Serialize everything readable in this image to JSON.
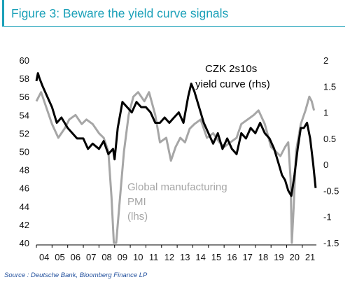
{
  "figure": {
    "title": "Figure 3: Beware the yield curve signals",
    "source": "Source : Deutsche Bank, Bloomberg Finance LP"
  },
  "chart_data": {
    "type": "line",
    "x_axis": {
      "tick_labels": [
        "04",
        "05",
        "06",
        "07",
        "08",
        "09",
        "10",
        "11",
        "12",
        "13",
        "14",
        "15",
        "16",
        "17",
        "18",
        "19",
        "20",
        "21"
      ],
      "range": [
        2004.0,
        2021.9
      ]
    },
    "y_left": {
      "range": [
        40,
        60
      ],
      "ticks": [
        40,
        42,
        44,
        46,
        48,
        50,
        52,
        54,
        56,
        58,
        60
      ]
    },
    "y_right": {
      "range": [
        -1.5,
        2
      ],
      "ticks": [
        -1.5,
        -1,
        -0.5,
        0,
        0.5,
        1,
        1.5,
        2
      ],
      "tick_labels": [
        "-1.5",
        "-1",
        "-0.5",
        "0",
        "0.5",
        "1",
        "1.5",
        "2"
      ]
    },
    "series": [
      {
        "name": "Global manufacturing PMI (lhs)",
        "label_lines": [
          "Global manufacturing",
          "PMI",
          "(lhs)"
        ],
        "axis": "left",
        "color": "#a6a6a6",
        "x": [
          2004.0,
          2004.3,
          2004.6,
          2005.0,
          2005.4,
          2005.8,
          2006.1,
          2006.5,
          2006.9,
          2007.2,
          2007.6,
          2008.0,
          2008.3,
          2008.6,
          2008.8,
          2008.95,
          2009.1,
          2009.3,
          2009.6,
          2009.9,
          2010.2,
          2010.5,
          2010.9,
          2011.2,
          2011.6,
          2011.9,
          2012.3,
          2012.6,
          2012.9,
          2013.2,
          2013.5,
          2013.8,
          2014.1,
          2014.5,
          2014.9,
          2015.3,
          2015.7,
          2016.0,
          2016.4,
          2016.8,
          2017.1,
          2017.5,
          2017.9,
          2018.2,
          2018.6,
          2019.0,
          2019.3,
          2019.6,
          2019.9,
          2020.1,
          2020.25,
          2020.33,
          2020.45,
          2020.6,
          2020.9,
          2021.2,
          2021.45,
          2021.6,
          2021.75
        ],
        "y": [
          55.5,
          56.5,
          55.0,
          53.0,
          51.5,
          52.5,
          53.5,
          54.0,
          53.0,
          53.5,
          53.0,
          52.0,
          51.5,
          50.0,
          45.0,
          36.0,
          37.0,
          44.0,
          50.0,
          54.0,
          56.0,
          56.5,
          55.5,
          56.5,
          54.0,
          51.0,
          51.5,
          49.0,
          50.5,
          51.5,
          51.0,
          52.5,
          53.0,
          53.5,
          51.5,
          52.0,
          51.0,
          50.5,
          51.0,
          51.5,
          53.0,
          53.5,
          54.0,
          54.5,
          53.0,
          50.5,
          50.0,
          49.5,
          50.5,
          51.0,
          47.0,
          39.0,
          44.0,
          50.0,
          53.0,
          54.5,
          56.0,
          55.5,
          54.5
        ]
      },
      {
        "name": "CZK 2s10s yield curve (rhs)",
        "label_lines": [
          "CZK 2s10s",
          "yield curve (rhs)"
        ],
        "axis": "right",
        "color": "#000000",
        "x": [
          2004.0,
          2004.1,
          2004.2,
          2004.4,
          2004.7,
          2005.0,
          2005.3,
          2005.6,
          2006.0,
          2006.3,
          2006.6,
          2007.0,
          2007.3,
          2007.6,
          2008.0,
          2008.3,
          2008.6,
          2008.9,
          2009.0,
          2009.2,
          2009.5,
          2009.8,
          2010.1,
          2010.4,
          2010.7,
          2011.0,
          2011.3,
          2011.6,
          2011.9,
          2012.2,
          2012.5,
          2012.8,
          2013.1,
          2013.4,
          2013.7,
          2013.9,
          2014.1,
          2014.4,
          2014.7,
          2015.0,
          2015.3,
          2015.6,
          2015.9,
          2016.2,
          2016.5,
          2016.8,
          2017.1,
          2017.4,
          2017.7,
          2018.0,
          2018.3,
          2018.6,
          2018.9,
          2019.2,
          2019.5,
          2019.7,
          2019.9,
          2020.1,
          2020.3,
          2020.5,
          2020.7,
          2020.9,
          2021.1,
          2021.3,
          2021.5,
          2021.7,
          2021.85
        ],
        "y": [
          1.6,
          1.75,
          1.65,
          1.5,
          1.3,
          1.1,
          0.8,
          0.9,
          0.7,
          0.6,
          0.5,
          0.5,
          0.3,
          0.4,
          0.3,
          0.45,
          0.2,
          0.3,
          0.1,
          0.7,
          1.2,
          1.1,
          1.0,
          1.2,
          1.1,
          1.1,
          1.0,
          0.8,
          0.8,
          0.9,
          0.8,
          0.9,
          1.0,
          0.8,
          1.3,
          1.55,
          1.4,
          1.1,
          0.8,
          0.6,
          0.4,
          0.6,
          0.3,
          0.5,
          0.3,
          0.2,
          0.6,
          0.5,
          0.7,
          0.6,
          0.8,
          0.6,
          0.5,
          0.3,
          0.0,
          -0.2,
          -0.3,
          -0.5,
          -0.6,
          -0.2,
          0.3,
          0.7,
          0.7,
          0.8,
          0.5,
          0.0,
          -0.45
        ]
      }
    ],
    "grid": false,
    "legend": "inline annotations"
  }
}
